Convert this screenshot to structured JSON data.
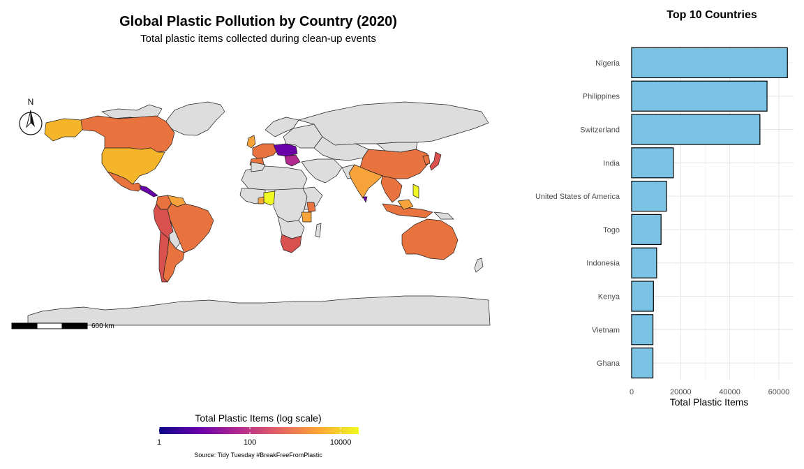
{
  "map": {
    "title": "Global Plastic Pollution by Country (2020)",
    "subtitle": "Total plastic items collected during clean-up events",
    "north_label": "N",
    "scalebar_label": "600 km",
    "legend": {
      "title": "Total Plastic Items (log scale)",
      "ticks": [
        "1",
        "100",
        "10000"
      ],
      "tick_values": [
        1,
        100,
        10000
      ],
      "range": [
        1,
        25000
      ],
      "colors": [
        "#0d0887",
        "#6a00a8",
        "#b12a90",
        "#e16462",
        "#fca636",
        "#f0f921"
      ]
    },
    "source": "Source: Tidy Tuesday #BreakFreeFromPlastic",
    "no_data_color": "#dddddd",
    "region_colors": {
      "orange": "#e8733f",
      "amber": "#f5a33a",
      "yellow": "#f5b52b",
      "red": "#d9514e",
      "bright_yellow": "#f0f921",
      "magenta": "#b12a90",
      "purple": "#6a00a8"
    }
  },
  "chart_data": {
    "type": "bar",
    "title": "Top 10 Countries",
    "xlabel": "Total Plastic Items",
    "ylabel": "",
    "orientation": "horizontal",
    "categories": [
      "Nigeria",
      "Philippines",
      "Switzerland",
      "India",
      "United States of America",
      "Togo",
      "Indonesia",
      "Kenya",
      "Vietnam",
      "Ghana"
    ],
    "values": [
      63500,
      55200,
      52300,
      17000,
      14200,
      12000,
      10200,
      8900,
      8700,
      8700
    ],
    "xlim": [
      0,
      66000
    ],
    "xticks": [
      0,
      20000,
      40000,
      60000
    ],
    "xtick_labels": [
      "0",
      "20000",
      "40000",
      "60000"
    ],
    "bar_color": "#7ac3e5",
    "bar_edge": "#000000",
    "grid": true
  }
}
